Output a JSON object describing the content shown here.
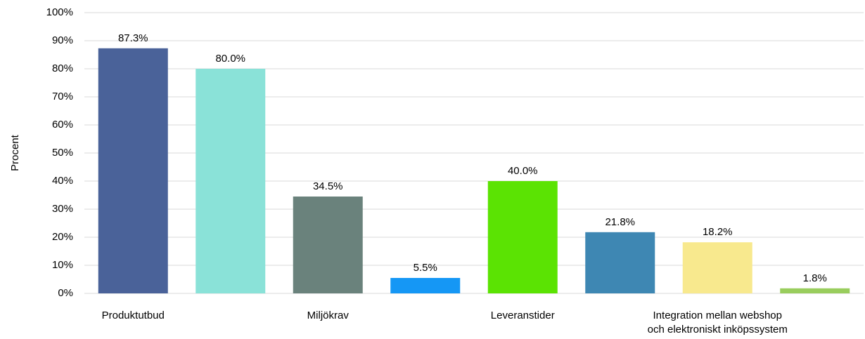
{
  "chart_data": {
    "type": "bar",
    "y_label": "Procent",
    "categories": [
      "Produktutbud",
      null,
      "Miljökrav",
      null,
      "Leveranstider",
      null,
      "Integration mellan webshop\noch elektroniskt inköpssystem",
      null
    ],
    "values": [
      87.3,
      80.0,
      34.5,
      5.5,
      40.0,
      21.8,
      18.2,
      1.8
    ],
    "value_labels": [
      "87.3%",
      "80.0%",
      "34.5%",
      "5.5%",
      "40.0%",
      "21.8%",
      "18.2%",
      "1.8%"
    ],
    "colors": [
      "#4a6299",
      "#8ae2d8",
      "#6a827c",
      "#1597f5",
      "#5be303",
      "#3e87b3",
      "#f8e98e",
      "#99cd5d"
    ],
    "ylim": [
      0,
      100
    ],
    "yticks": [
      {
        "value": 0,
        "label": "0%"
      },
      {
        "value": 10,
        "label": "10%"
      },
      {
        "value": 20,
        "label": "20%"
      },
      {
        "value": 30,
        "label": "30%"
      },
      {
        "value": 40,
        "label": "40%"
      },
      {
        "value": 50,
        "label": "50%"
      },
      {
        "value": 60,
        "label": "60%"
      },
      {
        "value": 70,
        "label": "70%"
      },
      {
        "value": 80,
        "label": "80%"
      },
      {
        "value": 90,
        "label": "90%"
      },
      {
        "value": 100,
        "label": "100%"
      }
    ],
    "grid": true
  }
}
